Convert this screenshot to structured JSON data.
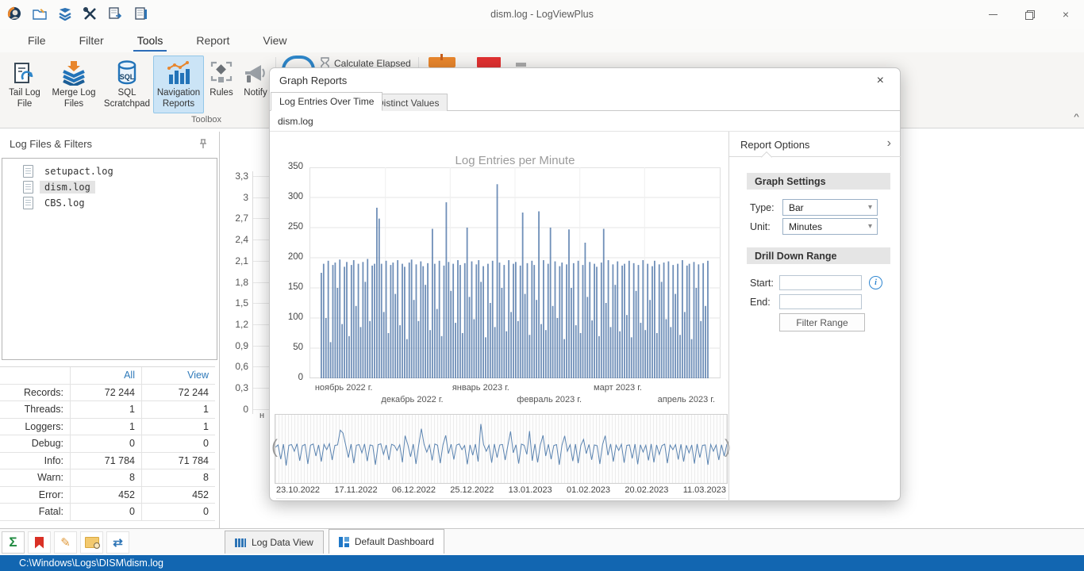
{
  "window": {
    "title": "dism.log - LogViewPlus"
  },
  "menu": {
    "items": [
      "File",
      "Filter",
      "Tools",
      "Report",
      "View"
    ],
    "active": "Tools"
  },
  "ribbon": {
    "buttons": [
      {
        "label": "Tail Log File"
      },
      {
        "label": "Merge Log Files"
      },
      {
        "label": "SQL Scratchpad"
      },
      {
        "label": "Navigation Reports",
        "active": true
      },
      {
        "label": "Rules"
      },
      {
        "label": "Notify"
      }
    ],
    "group_label": "Toolbox",
    "calculate_elapsed_label": "Calculate Elapsed"
  },
  "left_panel": {
    "title": "Log Files & Filters",
    "files": [
      {
        "name": "setupact.log",
        "selected": false
      },
      {
        "name": "dism.log",
        "selected": true
      },
      {
        "name": "CBS.log",
        "selected": false
      }
    ],
    "stats": {
      "columns": [
        "All",
        "View"
      ],
      "rows": [
        {
          "label": "Records:",
          "all": "72 244",
          "view": "72 244"
        },
        {
          "label": "Threads:",
          "all": "1",
          "view": "1"
        },
        {
          "label": "Loggers:",
          "all": "1",
          "view": "1"
        },
        {
          "label": "Debug:",
          "all": "0",
          "view": "0"
        },
        {
          "label": "Info:",
          "all": "71 784",
          "view": "71 784"
        },
        {
          "label": "Warn:",
          "all": "8",
          "view": "8"
        },
        {
          "label": "Error:",
          "all": "452",
          "view": "452"
        },
        {
          "label": "Fatal:",
          "all": "0",
          "view": "0"
        }
      ]
    }
  },
  "bottom_tabs": [
    {
      "label": "Log Data View",
      "active": false
    },
    {
      "label": "Default Dashboard",
      "active": true
    }
  ],
  "status_bar": {
    "path": "C:\\Windows\\Logs\\DISM\\dism.log",
    "color": "#1266b1"
  },
  "dialog": {
    "title": "Graph Reports",
    "close_glyph": "×",
    "tabs": [
      {
        "label": "Log Entries Over Time",
        "active": true
      },
      {
        "label": "Distinct Values",
        "active": false
      }
    ],
    "file_label": "dism.log",
    "options": {
      "panel_title": "Report Options",
      "sections": [
        {
          "title": "Graph Settings"
        },
        {
          "title": "Drill Down Range"
        }
      ],
      "type_label": "Type:",
      "type_value": "Bar",
      "unit_label": "Unit:",
      "unit_value": "Minutes",
      "start_label": "Start:",
      "start_value": "",
      "end_label": "End:",
      "end_value": "",
      "filter_button": "Filter Range"
    }
  },
  "chart_data": [
    {
      "type": "bar",
      "title": "Log Entries per Minute",
      "xlabel": "",
      "ylabel": "",
      "ylim": [
        0,
        350
      ],
      "y_ticks": [
        350,
        300,
        250,
        200,
        150,
        100,
        50,
        0
      ],
      "grid": true,
      "bar_color": "#4f76a8",
      "x_tick_labels": [
        "ноябрь 2022 г.",
        "декабрь 2022 г.",
        "январь 2023 г.",
        "февраль 2023 г.",
        "март 2023 г.",
        "апрель 2023 г."
      ],
      "values": [
        175,
        190,
        100,
        195,
        60,
        188,
        192,
        150,
        197,
        90,
        185,
        193,
        70,
        188,
        196,
        120,
        190,
        85,
        193,
        160,
        198,
        95,
        187,
        190,
        283,
        265,
        190,
        110,
        195,
        75,
        188,
        192,
        140,
        196,
        88,
        190,
        185,
        65,
        192,
        197,
        130,
        189,
        95,
        194,
        186,
        155,
        191,
        80,
        248,
        190,
        115,
        195,
        70,
        187,
        292,
        193,
        145,
        190,
        92,
        196,
        188,
        75,
        191,
        250,
        135,
        194,
        98,
        189,
        196,
        160,
        186,
        68,
        190,
        125,
        195,
        85,
        322,
        192,
        150,
        188,
        78,
        196,
        110,
        190,
        193,
        95,
        187,
        275,
        140,
        191,
        72,
        195,
        188,
        130,
        277,
        90,
        196,
        80,
        190,
        250,
        120,
        194,
        100,
        186,
        192,
        65,
        189,
        247,
        150,
        191,
        88,
        195,
        75,
        188,
        225,
        135,
        193,
        96,
        190,
        185,
        70,
        192,
        248,
        125,
        196,
        85,
        189,
        155,
        194,
        78,
        187,
        190,
        105,
        195,
        68,
        191,
        145,
        188,
        92,
        196,
        80,
        190,
        130,
        186,
        195,
        75,
        189,
        160,
        192,
        98,
        194,
        85,
        188,
        140,
        190,
        72,
        196,
        110,
        187,
        190,
        65,
        193,
        150,
        189,
        95,
        191,
        120,
        195
      ],
      "navigator": {
        "type": "line",
        "line_color": "#5b84b1",
        "dates": [
          "23.10.2022",
          "17.11.2022",
          "06.12.2022",
          "25.12.2022",
          "13.01.2023",
          "01.02.2023",
          "20.02.2023",
          "11.03.2023"
        ]
      }
    },
    {
      "type": "bar",
      "title": "",
      "y_ticks": [
        "3,3",
        "3",
        "2,7",
        "2,4",
        "2,1",
        "1,8",
        "1,5",
        "1,2",
        "0,9",
        "0,6",
        "0,3",
        "0"
      ],
      "partial_x_label": "н"
    }
  ]
}
